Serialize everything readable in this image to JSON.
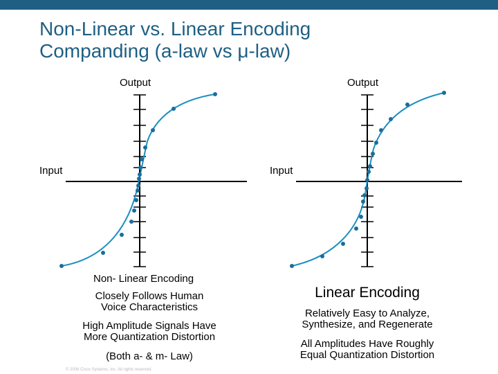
{
  "title": {
    "line1": "Non-Linear vs. Linear Encoding",
    "line2": "Companding (a-law vs μ-law)"
  },
  "left_graph": {
    "output_label": "Output",
    "input_label": "Input",
    "caption": "Non- Linear Encoding",
    "notes": [
      {
        "line1": "Closely Follows Human",
        "line2": "Voice Characteristics"
      },
      {
        "line1": "High Amplitude Signals Have",
        "line2": "More Quantization Distortion"
      },
      {
        "line1": "(Both a- & m- Law)"
      }
    ]
  },
  "right_graph": {
    "output_label": "Output",
    "input_label": "Input",
    "caption": "Linear Encoding",
    "notes": [
      {
        "line1": "Relatively Easy to Analyze,",
        "line2": "Synthesize, and Regenerate"
      },
      {
        "line1": "All Amplitudes Have Roughly",
        "line2": "Equal Quantization Distortion"
      }
    ]
  },
  "footer": "© 2006 Cisco Systems, Inc. All rights reserved.",
  "colors": {
    "header_bar": "#1f5f84",
    "title": "#1f5f84",
    "curve": "#1b8fc0",
    "points": "#1a6d9c",
    "axes": "#000000"
  }
}
